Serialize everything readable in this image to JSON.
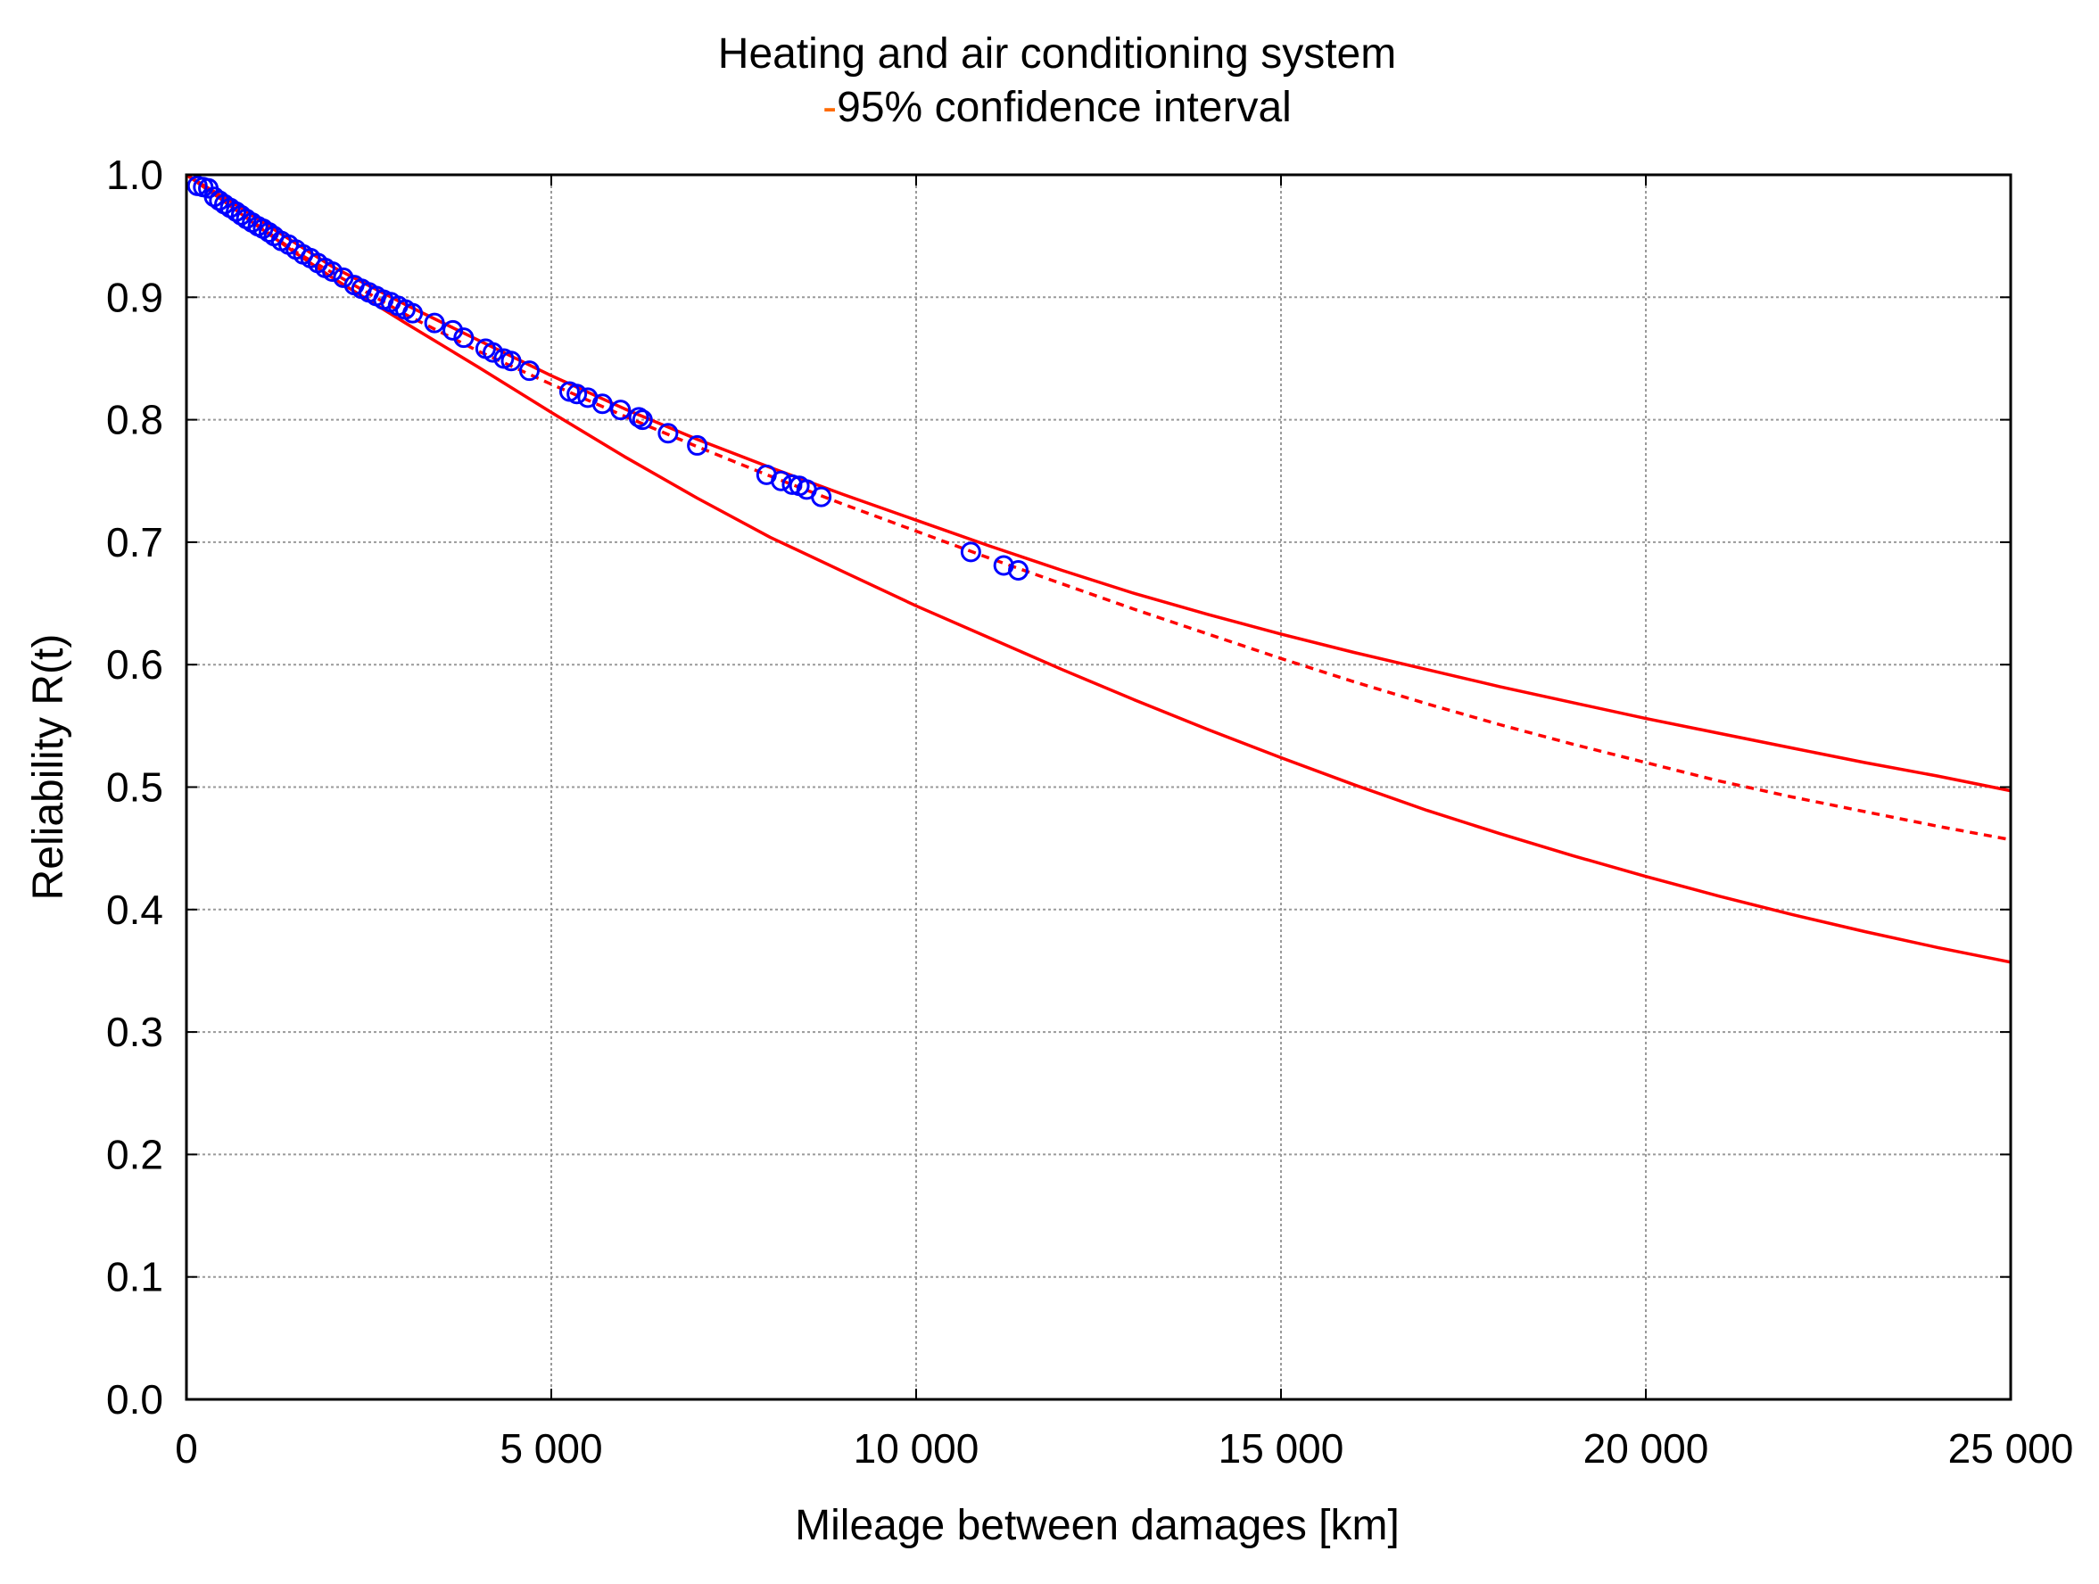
{
  "chart_data": {
    "type": "line",
    "title": "Heating and air conditioning system",
    "subtitle_marker": "-",
    "subtitle": "95% confidence interval",
    "xlabel": "Mileage between damages [km]",
    "ylabel": "Reliability R(t)",
    "xlim": [
      0,
      25000
    ],
    "ylim": [
      0.0,
      1.0
    ],
    "grid": true,
    "x_ticks": [
      0,
      5000,
      10000,
      15000,
      20000,
      25000
    ],
    "x_tick_labels": [
      "0",
      "5 000",
      "10 000",
      "15 000",
      "20 000",
      "25 000"
    ],
    "y_ticks": [
      0.0,
      0.1,
      0.2,
      0.3,
      0.4,
      0.5,
      0.6,
      0.7,
      0.8,
      0.9,
      1.0
    ],
    "y_tick_labels": [
      "0.0",
      "0.1",
      "0.2",
      "0.3",
      "0.4",
      "0.5",
      "0.6",
      "0.7",
      "0.8",
      "0.9",
      "1.0"
    ],
    "colors": {
      "curve": "#ff0000",
      "points": "#0000ff",
      "subtitle_marker": "#ff6a00",
      "grid": "#9a9a9a"
    },
    "series": [
      {
        "style": "solid",
        "x": [
          0,
          500,
          1000,
          1500,
          2000,
          3000,
          4000,
          5000,
          6000,
          7000,
          8000,
          9000,
          10000,
          11000,
          12000,
          13000,
          14000,
          15000,
          16000,
          17000,
          18000,
          19000,
          20000,
          21000,
          22000,
          23000,
          24000,
          25000
        ],
        "y": [
          1.0,
          0.982,
          0.963,
          0.944,
          0.925,
          0.894,
          0.865,
          0.836,
          0.809,
          0.784,
          0.761,
          0.739,
          0.718,
          0.697,
          0.677,
          0.658,
          0.641,
          0.625,
          0.61,
          0.596,
          0.582,
          0.569,
          0.556,
          0.544,
          0.532,
          0.52,
          0.509,
          0.497
        ]
      },
      {
        "style": "dashed",
        "x": [
          0,
          500,
          1000,
          1500,
          2000,
          3000,
          4000,
          5000,
          6000,
          7000,
          8000,
          9000,
          10000,
          11000,
          12000,
          13000,
          14000,
          15000,
          16000,
          17000,
          18000,
          19000,
          20000,
          21000,
          22000,
          23000,
          24000,
          25000
        ],
        "y": [
          1.0,
          0.979,
          0.958,
          0.937,
          0.92,
          0.886,
          0.856,
          0.829,
          0.803,
          0.778,
          0.754,
          0.731,
          0.709,
          0.687,
          0.666,
          0.645,
          0.625,
          0.605,
          0.586,
          0.568,
          0.551,
          0.535,
          0.52,
          0.505,
          0.492,
          0.48,
          0.468,
          0.457
        ]
      },
      {
        "style": "solid",
        "x": [
          0,
          500,
          1000,
          1500,
          2000,
          3000,
          4000,
          5000,
          6000,
          7000,
          8000,
          9000,
          10000,
          11000,
          12000,
          13000,
          14000,
          15000,
          16000,
          17000,
          18000,
          19000,
          20000,
          21000,
          22000,
          23000,
          24000,
          25000
        ],
        "y": [
          1.0,
          0.979,
          0.957,
          0.936,
          0.916,
          0.879,
          0.843,
          0.806,
          0.77,
          0.736,
          0.704,
          0.676,
          0.648,
          0.622,
          0.596,
          0.571,
          0.547,
          0.524,
          0.502,
          0.481,
          0.462,
          0.444,
          0.427,
          0.411,
          0.396,
          0.382,
          0.369,
          0.357
        ]
      }
    ],
    "points": {
      "marker": "circle",
      "x": [
        150,
        230,
        300,
        380,
        450,
        520,
        600,
        680,
        750,
        820,
        900,
        980,
        1050,
        1130,
        1200,
        1300,
        1400,
        1500,
        1600,
        1700,
        1800,
        1900,
        2000,
        2150,
        2300,
        2400,
        2500,
        2600,
        2700,
        2800,
        2900,
        3000,
        3100,
        3400,
        3650,
        3800,
        4100,
        4200,
        4350,
        4450,
        4700,
        5250,
        5350,
        5500,
        5700,
        5950,
        6200,
        6250,
        6600,
        7000,
        7950,
        8150,
        8300,
        8400,
        8500,
        8700,
        10750,
        11200,
        11400
      ],
      "y": [
        0.991,
        0.99,
        0.989,
        0.982,
        0.979,
        0.976,
        0.973,
        0.97,
        0.967,
        0.964,
        0.961,
        0.958,
        0.956,
        0.953,
        0.95,
        0.946,
        0.943,
        0.939,
        0.935,
        0.932,
        0.928,
        0.924,
        0.921,
        0.916,
        0.91,
        0.907,
        0.904,
        0.901,
        0.898,
        0.896,
        0.893,
        0.89,
        0.887,
        0.879,
        0.873,
        0.867,
        0.858,
        0.855,
        0.85,
        0.848,
        0.84,
        0.823,
        0.821,
        0.818,
        0.813,
        0.808,
        0.802,
        0.8,
        0.789,
        0.779,
        0.755,
        0.75,
        0.747,
        0.746,
        0.743,
        0.737,
        0.692,
        0.681,
        0.677
      ]
    }
  }
}
